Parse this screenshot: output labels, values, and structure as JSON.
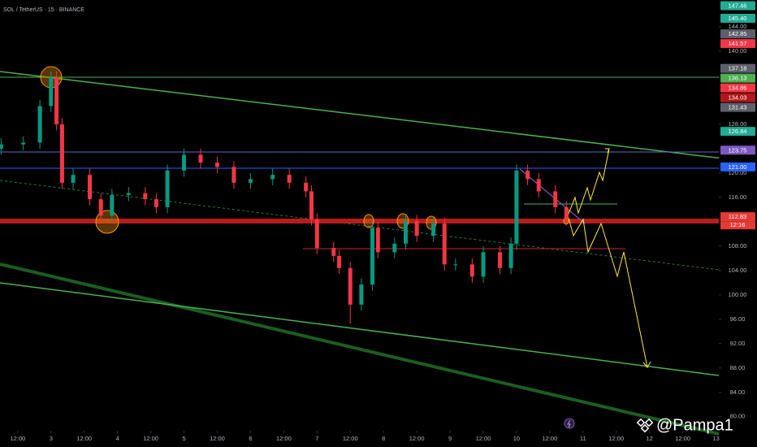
{
  "chart_data": {
    "type": "candlestick",
    "title": "SOL / TetherUS · 15 · BINANCE",
    "watermark": "@Pampa1",
    "countdown": "12:16",
    "x": [
      6,
      14,
      20,
      24,
      26,
      28,
      32,
      38,
      42,
      46,
      52,
      58,
      62,
      66,
      72,
      78,
      84,
      90,
      96,
      104,
      110,
      116,
      118,
      120,
      126,
      128,
      132,
      136,
      140,
      142,
      148,
      152,
      156,
      162,
      166,
      170,
      176,
      180,
      186,
      190,
      192,
      196,
      200,
      206,
      210
    ],
    "open": [
      124,
      124.7,
      125,
      131,
      135.7,
      128,
      118.4,
      119.7,
      115.7,
      113,
      116.4,
      116.7,
      115.7,
      114.4,
      120.4,
      123,
      121.7,
      121,
      118.4,
      119,
      119.7,
      118.4,
      117,
      112.4,
      107.7,
      106.4,
      104.4,
      98.4,
      101.7,
      111,
      107,
      108.4,
      112.1,
      109.7,
      111.7,
      105,
      105,
      103,
      107,
      104.4,
      108.4,
      120.4,
      119,
      117,
      114.4
    ],
    "high": [
      125.7,
      126,
      132,
      136.7,
      136.7,
      129,
      120.7,
      120.7,
      116.7,
      117.4,
      117.7,
      117.7,
      116.7,
      121.4,
      124,
      124,
      122.7,
      122,
      120,
      120.7,
      120.7,
      119.4,
      118,
      113.4,
      108.7,
      107.4,
      105.4,
      102.7,
      112,
      112,
      109.4,
      113.1,
      113.1,
      112.7,
      112.7,
      106,
      106,
      108,
      108,
      109.4,
      121.4,
      121.4,
      120,
      118,
      115.4
    ],
    "low": [
      123,
      123.7,
      124,
      130,
      127,
      117.4,
      117.4,
      114.7,
      112,
      112,
      115.4,
      114.7,
      113.4,
      113.4,
      119.4,
      120.7,
      120,
      117.4,
      117.4,
      118,
      117.4,
      116,
      111.4,
      106.7,
      105.4,
      103.4,
      95.3,
      97.4,
      100.7,
      106,
      106,
      107.4,
      108.7,
      108.7,
      104,
      104,
      102,
      102,
      103.4,
      103.4,
      107.4,
      118,
      116,
      113.4,
      111.4
    ],
    "close": [
      124.7,
      125,
      131,
      135.7,
      128,
      118.4,
      119.7,
      115.7,
      113,
      116.4,
      116.7,
      115.7,
      114.4,
      120.4,
      123,
      121.7,
      121,
      118.4,
      119,
      119.7,
      118.4,
      117,
      112.4,
      107.7,
      106.4,
      104.4,
      98.4,
      101.7,
      111,
      107,
      108.4,
      112.1,
      109.7,
      111.7,
      105,
      105,
      103,
      107,
      104.4,
      108.4,
      120.4,
      119,
      117,
      114.4,
      112.4
    ],
    "up_color": "#089981",
    "down_color": "#f23645",
    "grid": false,
    "xlim": [
      5.6,
      265
    ],
    "ylim": [
      77.7,
      148.4
    ],
    "xticks": [
      {
        "value": 12,
        "label": "12:00"
      },
      {
        "value": 24,
        "label": "3"
      },
      {
        "value": 36,
        "label": "12:00"
      },
      {
        "value": 48,
        "label": "4"
      },
      {
        "value": 60,
        "label": "12:00"
      },
      {
        "value": 72,
        "label": "5"
      },
      {
        "value": 84,
        "label": "12:00"
      },
      {
        "value": 96,
        "label": "6"
      },
      {
        "value": 108,
        "label": "12:00"
      },
      {
        "value": 120,
        "label": "7"
      },
      {
        "value": 132,
        "label": "12:00"
      },
      {
        "value": 144,
        "label": "8"
      },
      {
        "value": 156,
        "label": "12:00"
      },
      {
        "value": 168,
        "label": "9"
      },
      {
        "value": 180,
        "label": "12:00"
      },
      {
        "value": 192,
        "label": "10"
      },
      {
        "value": 204,
        "label": "12:00"
      },
      {
        "value": 216,
        "label": "11"
      },
      {
        "value": 228,
        "label": "12:00"
      },
      {
        "value": 240,
        "label": "12"
      },
      {
        "value": 252,
        "label": "12:00"
      },
      {
        "value": 264,
        "label": "13"
      }
    ],
    "yticks": [
      {
        "value": 144,
        "label": "144.00"
      },
      {
        "value": 140,
        "label": "140.00"
      },
      {
        "value": 128,
        "label": "128.00"
      },
      {
        "value": 120,
        "label": "120.00"
      },
      {
        "value": 116,
        "label": "116.00"
      },
      {
        "value": 108,
        "label": "108.00"
      },
      {
        "value": 104,
        "label": "104.00"
      },
      {
        "value": 100,
        "label": "100.00"
      },
      {
        "value": 96,
        "label": "96.00"
      },
      {
        "value": 92,
        "label": "92.00"
      },
      {
        "value": 88,
        "label": "88.00"
      },
      {
        "value": 84,
        "label": "84.00"
      },
      {
        "value": 80,
        "label": "80.00"
      }
    ],
    "price_tags": [
      {
        "value": 147.46,
        "label": "147.46",
        "color": "#22ab94"
      },
      {
        "value": 145.4,
        "label": "145.40",
        "color": "#22ab94"
      },
      {
        "value": 142.85,
        "label": "142.85",
        "color": "#5d606b"
      },
      {
        "value": 141.57,
        "label": "141.57",
        "color": "#f23645"
      },
      {
        "value": 137.18,
        "label": "137.18",
        "color": "#5d606b"
      },
      {
        "value": 136.13,
        "label": "136.13",
        "color": "#4caf50"
      },
      {
        "value": 134.86,
        "label": "134.86",
        "color": "#f23645"
      },
      {
        "value": 134.03,
        "label": "134.03",
        "color": "#b2181b"
      },
      {
        "value": 131.43,
        "label": "131.43",
        "color": "#5d606b"
      },
      {
        "value": 126.84,
        "label": "126.84",
        "color": "#22ab94"
      },
      {
        "value": 123.75,
        "label": "123.75",
        "color": "#7e57c2"
      },
      {
        "value": 121,
        "label": "121.00",
        "color": "#2962ff"
      },
      {
        "value": 112.83,
        "label": "112.83",
        "color": "#e53935"
      }
    ]
  }
}
